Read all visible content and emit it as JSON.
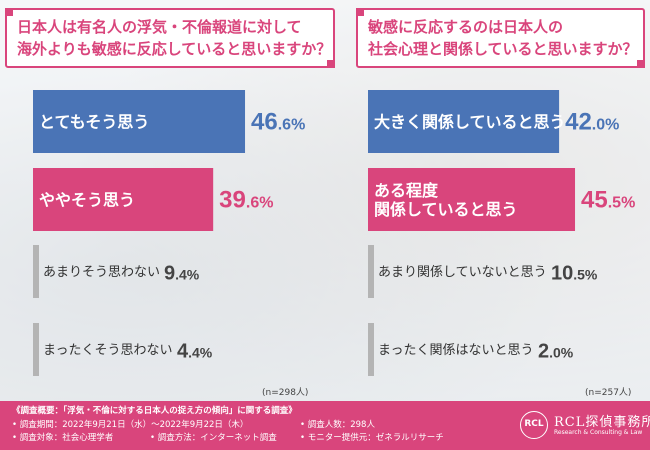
{
  "footer": {
    "title": "《調査概要：「浮気・不倫に対する日本人の捉え方の傾向」に関する調査》",
    "period": "• 調査期間：2022年9月21日（水）～2022年9月22日（木）",
    "target": "• 調査対象：社会心理学者",
    "method": "• 調査方法：インターネット調査",
    "count": "• 調査人数：298人",
    "provider": "• モニター提供元：ゼネラルリサーチ",
    "logo_name": "RCL探偵事務所",
    "logo_sub": "Research & Consulting & Law",
    "logo_mark": "RCL"
  },
  "colors": {
    "accent": "#d9457c",
    "blue": "#4a74b6",
    "gray": "#b4b4b4",
    "value_first": "#4a74b6",
    "value_second": "#d9457c",
    "value_other": "#444444"
  },
  "chart_data": [
    {
      "type": "bar",
      "orientation": "horizontal",
      "title_lines": [
        "日本人は有名人の浮気・不倫報道に対して",
        "海外よりも敏感に反応していると思いますか？"
      ],
      "categories": [
        "とてもそう思う",
        "ややそう思う",
        "あまりそう思わない",
        "まったくそう思わない"
      ],
      "values": [
        46.6,
        39.6,
        9.4,
        4.4
      ],
      "value_labels": [
        "46.6%",
        "39.6%",
        "9.4%",
        "4.4%"
      ],
      "n_label": "(n=298人)",
      "xlim": [
        0,
        100
      ]
    },
    {
      "type": "bar",
      "orientation": "horizontal",
      "title_lines": [
        "敏感に反応するのは日本人の",
        "社会心理と関係していると思いますか？"
      ],
      "categories": [
        "大きく関係していると思う",
        "ある程度関係していると思う",
        "あまり関係していないと思う",
        "まったく関係はないと思う"
      ],
      "category_lines": [
        [
          "大きく関係していると思う"
        ],
        [
          "ある程度",
          "関係していると思う"
        ],
        [
          "あまり関係していないと思う"
        ],
        [
          "まったく関係はないと思う"
        ]
      ],
      "values": [
        42.0,
        45.5,
        10.5,
        2.0
      ],
      "value_labels": [
        "42.0%",
        "45.5%",
        "10.5%",
        "2.0%"
      ],
      "n_label": "(n=257人)",
      "xlim": [
        0,
        100
      ]
    }
  ]
}
